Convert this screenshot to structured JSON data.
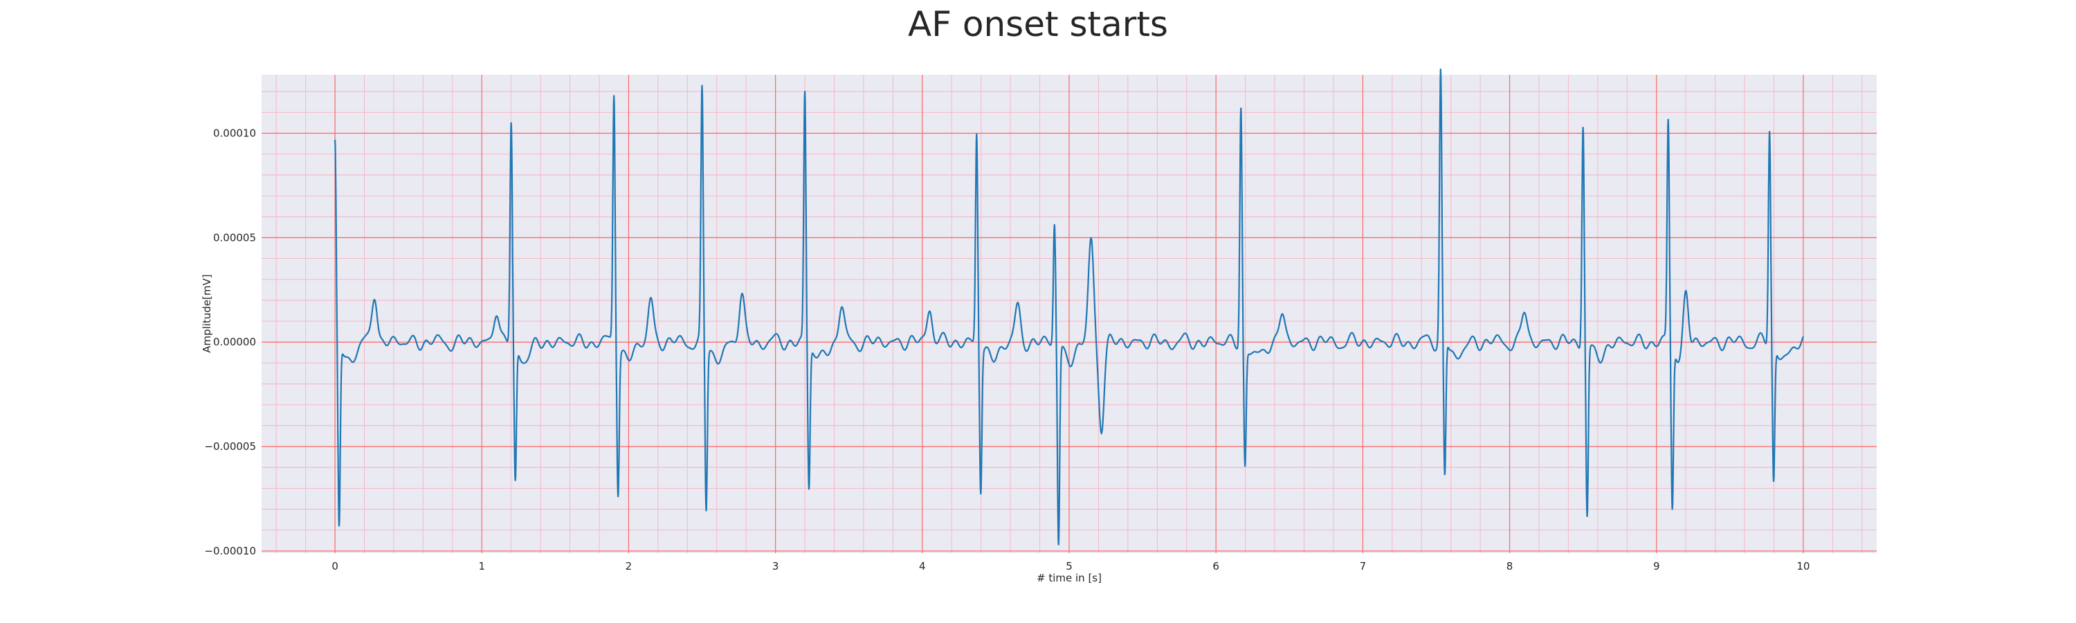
{
  "chart_data": {
    "type": "line",
    "title": "AF onset starts",
    "xlabel": "# time in [s]",
    "ylabel": "Amplitude[mV]",
    "xlim": [
      -0.5,
      10.5
    ],
    "ylim": [
      -0.000101,
      0.000128
    ],
    "x_ticks": [
      "0",
      "1",
      "2",
      "3",
      "4",
      "5",
      "6",
      "7",
      "8",
      "9",
      "10"
    ],
    "y_ticks": [
      "0.00010",
      "0.00005",
      "0.00000",
      "−0.00005",
      "−0.00010"
    ],
    "y_tick_values": [
      0.0001,
      5e-05,
      0,
      -5e-05,
      -0.0001
    ],
    "grid": true,
    "minor_grid": true,
    "colors": {
      "line": "#1f77b4",
      "grid_major": "#ff6666",
      "grid_minor": "#f6b8c6",
      "background": "#eaeaf2"
    },
    "series": [
      {
        "beats": [
          {
            "t": 0.0,
            "r": 9e-05,
            "q": -8.5e-05
          },
          {
            "t": 1.2,
            "r": 0.0001,
            "q": -6.3e-05
          },
          {
            "t": 1.9,
            "r": 0.000114,
            "q": -6.5e-05
          },
          {
            "t": 2.5,
            "r": 0.000114,
            "q": -7.5e-05
          },
          {
            "t": 3.2,
            "r": 0.000114,
            "q": -6.5e-05
          },
          {
            "t": 4.37,
            "r": 9.6e-05,
            "q": -6.6e-05
          },
          {
            "t": 4.9,
            "r": 5.5e-05,
            "q": -9.1e-05
          },
          {
            "t": 6.17,
            "r": 0.000108,
            "q": -5.5e-05
          },
          {
            "t": 7.53,
            "r": 0.000118,
            "q": -6.9e-05
          },
          {
            "t": 8.5,
            "r": 0.000101,
            "q": -7.8e-05
          },
          {
            "t": 9.08,
            "r": 0.0001,
            "q": -7.5e-05
          },
          {
            "t": 9.77,
            "r": 9.7e-05,
            "q": -6.3e-05
          }
        ],
        "t_waves": [
          {
            "t": 0.27,
            "v": 2.4e-05
          },
          {
            "t": 1.1,
            "v": 1.6e-05
          },
          {
            "t": 2.15,
            "v": 2.1e-05
          },
          {
            "t": 2.77,
            "v": 2.3e-05
          },
          {
            "t": 3.45,
            "v": 1.7e-05
          },
          {
            "t": 4.05,
            "v": 1.8e-05
          },
          {
            "t": 4.65,
            "v": 1.6e-05
          },
          {
            "t": 5.15,
            "v": 4.8e-05
          },
          {
            "t": 5.22,
            "v": -4e-05
          },
          {
            "t": 6.45,
            "v": 1.4e-05
          },
          {
            "t": 7.55,
            "v": 1.2e-05
          },
          {
            "t": 8.1,
            "v": 1.5e-05
          },
          {
            "t": 9.2,
            "v": 3e-05
          }
        ]
      }
    ]
  }
}
